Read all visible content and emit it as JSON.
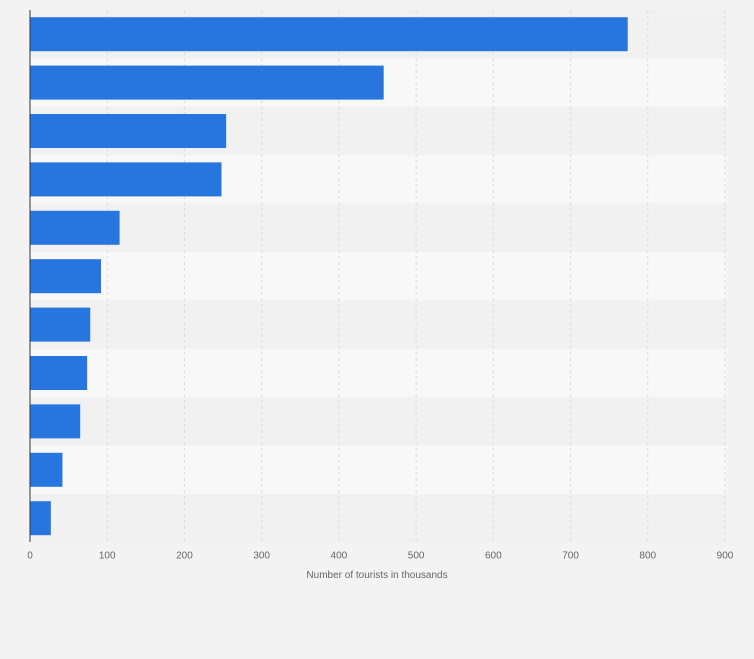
{
  "chart_data": {
    "type": "bar",
    "orientation": "horizontal",
    "title": "",
    "categories": [
      "",
      "",
      "",
      "",
      "",
      "",
      "",
      "",
      "",
      "",
      ""
    ],
    "values": [
      774,
      458,
      254,
      248,
      116,
      92,
      78,
      74,
      65,
      42,
      27
    ],
    "xlabel": "Number of tourists in thousands",
    "ylabel": "",
    "xlim": [
      0,
      900
    ],
    "xticks": [
      0,
      100,
      200,
      300,
      400,
      500,
      600,
      700,
      800,
      900
    ],
    "grid": true,
    "legend": "none"
  },
  "colors": {
    "bar": "#2775de",
    "band_light": "#f8f8f8",
    "band_dark": "#f1f1f1",
    "gridline": "#dcdcdc",
    "axis": "#333333",
    "text": "#666666",
    "page_background": "#f3f3f3"
  }
}
